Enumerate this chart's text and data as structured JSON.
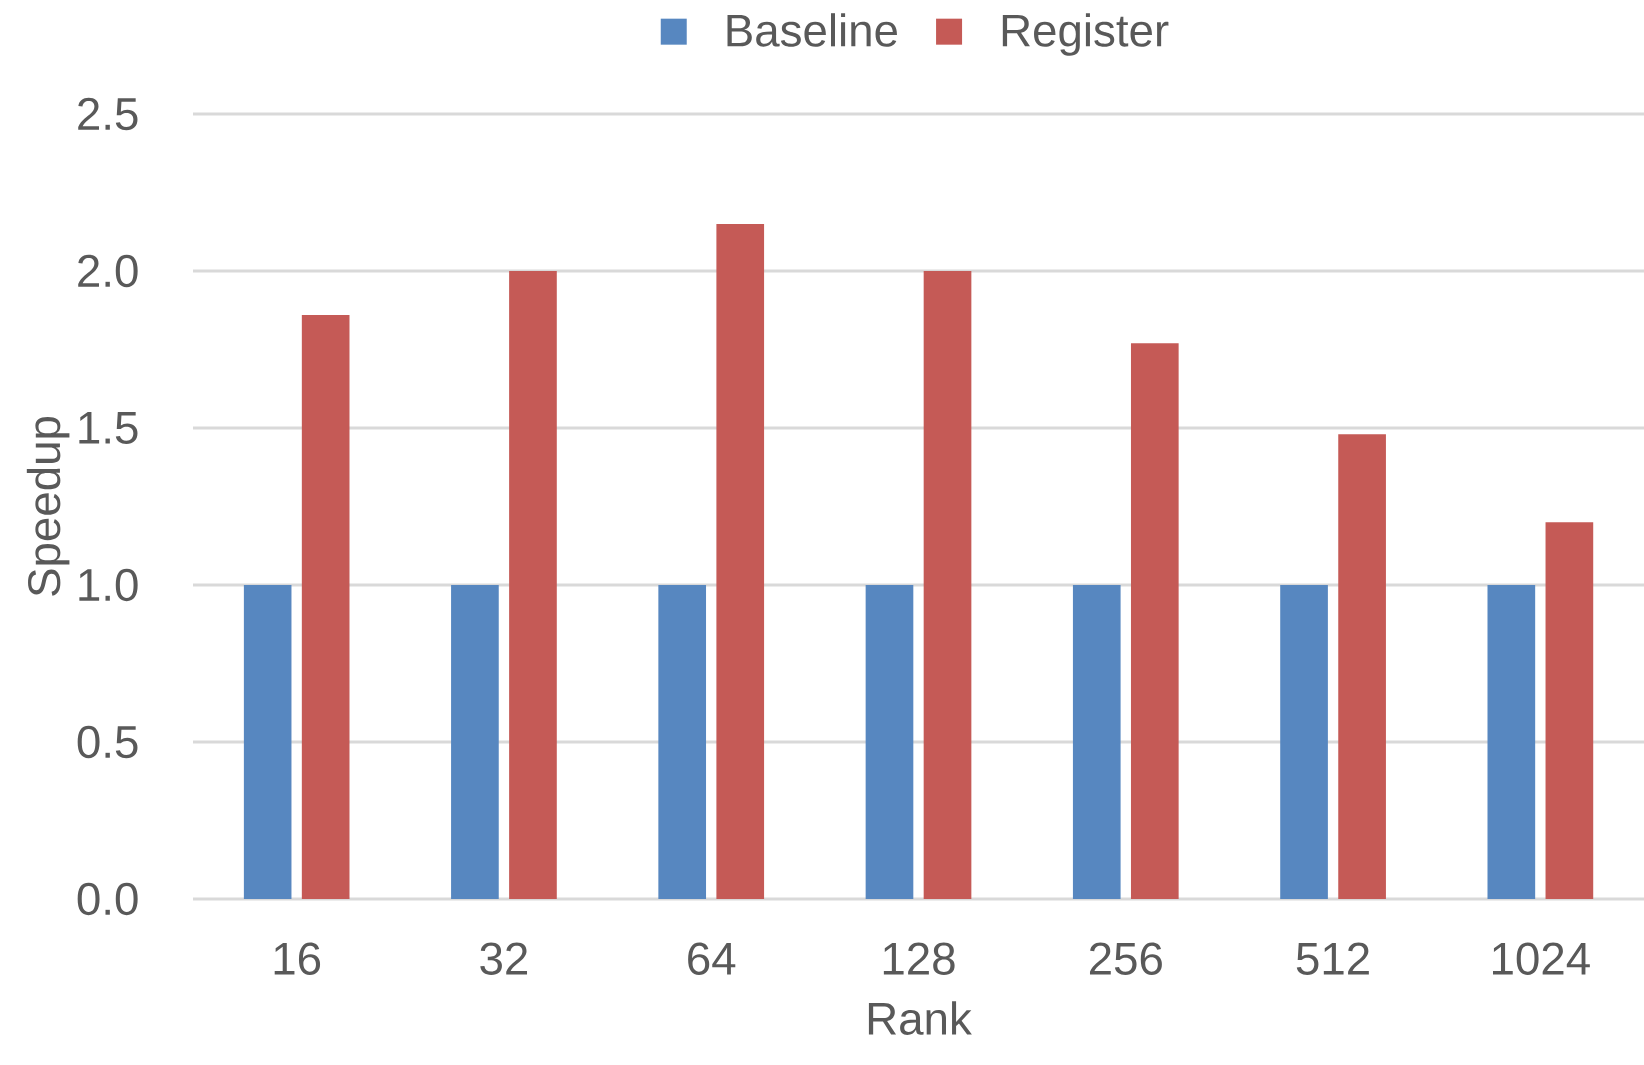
{
  "chart_data": {
    "type": "bar",
    "xlabel": "Rank",
    "ylabel": "Speedup",
    "categories": [
      "16",
      "32",
      "64",
      "128",
      "256",
      "512",
      "1024"
    ],
    "series": [
      {
        "name": "Baseline",
        "color": "#5787c0",
        "values": [
          1.0,
          1.0,
          1.0,
          1.0,
          1.0,
          1.0,
          1.0
        ]
      },
      {
        "name": "Register",
        "color": "#c55a56",
        "values": [
          1.86,
          2.0,
          2.15,
          2.0,
          1.77,
          1.48,
          1.2
        ]
      }
    ],
    "ylim": [
      0,
      2.5
    ],
    "yticks": [
      {
        "value": 0,
        "label": "0.0"
      },
      {
        "value": 0.5,
        "label": "0.5"
      },
      {
        "value": 1,
        "label": "1.0"
      },
      {
        "value": 1.5,
        "label": "1.5"
      },
      {
        "value": 2,
        "label": "2.0"
      },
      {
        "value": 2.5,
        "label": "2.5"
      }
    ],
    "grid": "y",
    "legend": "top"
  }
}
